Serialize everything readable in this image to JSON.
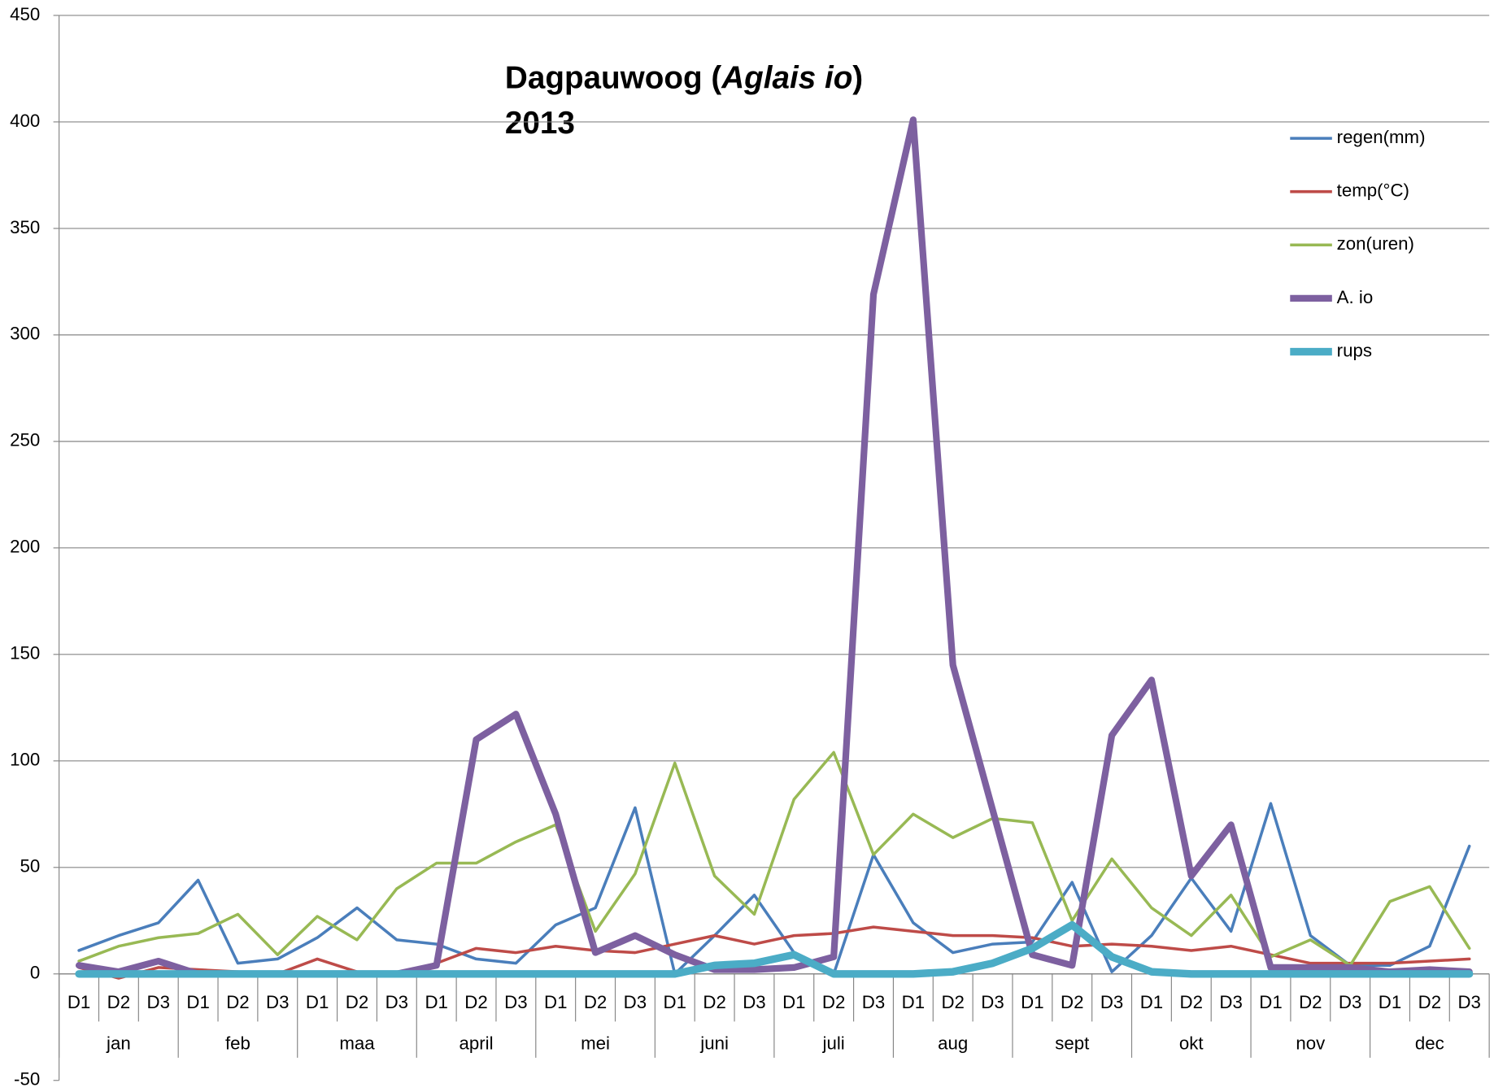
{
  "chart_data": {
    "type": "line",
    "title_prefix": "Dagpauwoog (",
    "title_species": "Aglais io",
    "title_suffix": ")",
    "subtitle": "2013",
    "categories": [
      "D1",
      "D2",
      "D3",
      "D1",
      "D2",
      "D3",
      "D1",
      "D2",
      "D3",
      "D1",
      "D2",
      "D3",
      "D1",
      "D2",
      "D3",
      "D1",
      "D2",
      "D3",
      "D1",
      "D2",
      "D3",
      "D1",
      "D2",
      "D3",
      "D1",
      "D2",
      "D3",
      "D1",
      "D2",
      "D3",
      "D1",
      "D2",
      "D3",
      "D1",
      "D2",
      "D3"
    ],
    "months": [
      "jan",
      "feb",
      "maa",
      "april",
      "mei",
      "juni",
      "juli",
      "aug",
      "sept",
      "okt",
      "nov",
      "dec"
    ],
    "series": [
      {
        "name": "regen(mm)",
        "color": "#4a7ebb",
        "width": 3,
        "values": [
          11,
          18,
          24,
          44,
          5,
          7,
          17,
          31,
          16,
          14,
          7,
          5,
          23,
          31,
          78,
          0,
          18,
          37,
          10,
          0,
          56,
          24,
          10,
          14,
          15,
          43,
          1,
          18,
          45,
          20,
          80,
          18,
          4,
          4,
          13,
          60
        ]
      },
      {
        "name": "temp(°C)",
        "color": "#be4b48",
        "width": 3,
        "values": [
          3,
          -2,
          3,
          2,
          1,
          0,
          7,
          1,
          0,
          5,
          12,
          10,
          13,
          11,
          10,
          14,
          18,
          14,
          18,
          19,
          22,
          20,
          18,
          18,
          17,
          13,
          14,
          13,
          11,
          13,
          9,
          5,
          5,
          5,
          6,
          7
        ]
      },
      {
        "name": "zon(uren)",
        "color": "#98b954",
        "width": 3,
        "values": [
          6,
          13,
          17,
          19,
          28,
          9,
          27,
          16,
          40,
          52,
          52,
          62,
          70,
          20,
          47,
          99,
          46,
          28,
          82,
          104,
          56,
          75,
          64,
          73,
          71,
          25,
          54,
          31,
          18,
          37,
          8,
          16,
          4,
          34,
          41,
          12
        ]
      },
      {
        "name": "A. io",
        "color": "#7d60a0",
        "width": 7,
        "values": [
          4,
          1,
          6,
          0,
          0,
          0,
          0,
          0,
          0,
          4,
          110,
          122,
          75,
          10,
          18,
          9,
          2,
          2,
          3,
          8,
          319,
          401,
          145,
          77,
          9,
          4,
          112,
          138,
          46,
          70,
          3,
          3,
          3,
          1,
          2,
          1
        ]
      },
      {
        "name": "rups",
        "color": "#4bacc6",
        "width": 8,
        "values": [
          0,
          0,
          0,
          0,
          0,
          0,
          0,
          0,
          0,
          0,
          0,
          0,
          0,
          0,
          0,
          0,
          4,
          5,
          9,
          0,
          0,
          0,
          1,
          5,
          12,
          23,
          8,
          1,
          0,
          0,
          0,
          0,
          0,
          0,
          0,
          0
        ]
      }
    ],
    "ylim": [
      -50,
      450
    ],
    "yticks": [
      -50,
      0,
      50,
      100,
      150,
      200,
      250,
      300,
      350,
      400,
      450
    ],
    "grid": true,
    "legend": "right"
  }
}
